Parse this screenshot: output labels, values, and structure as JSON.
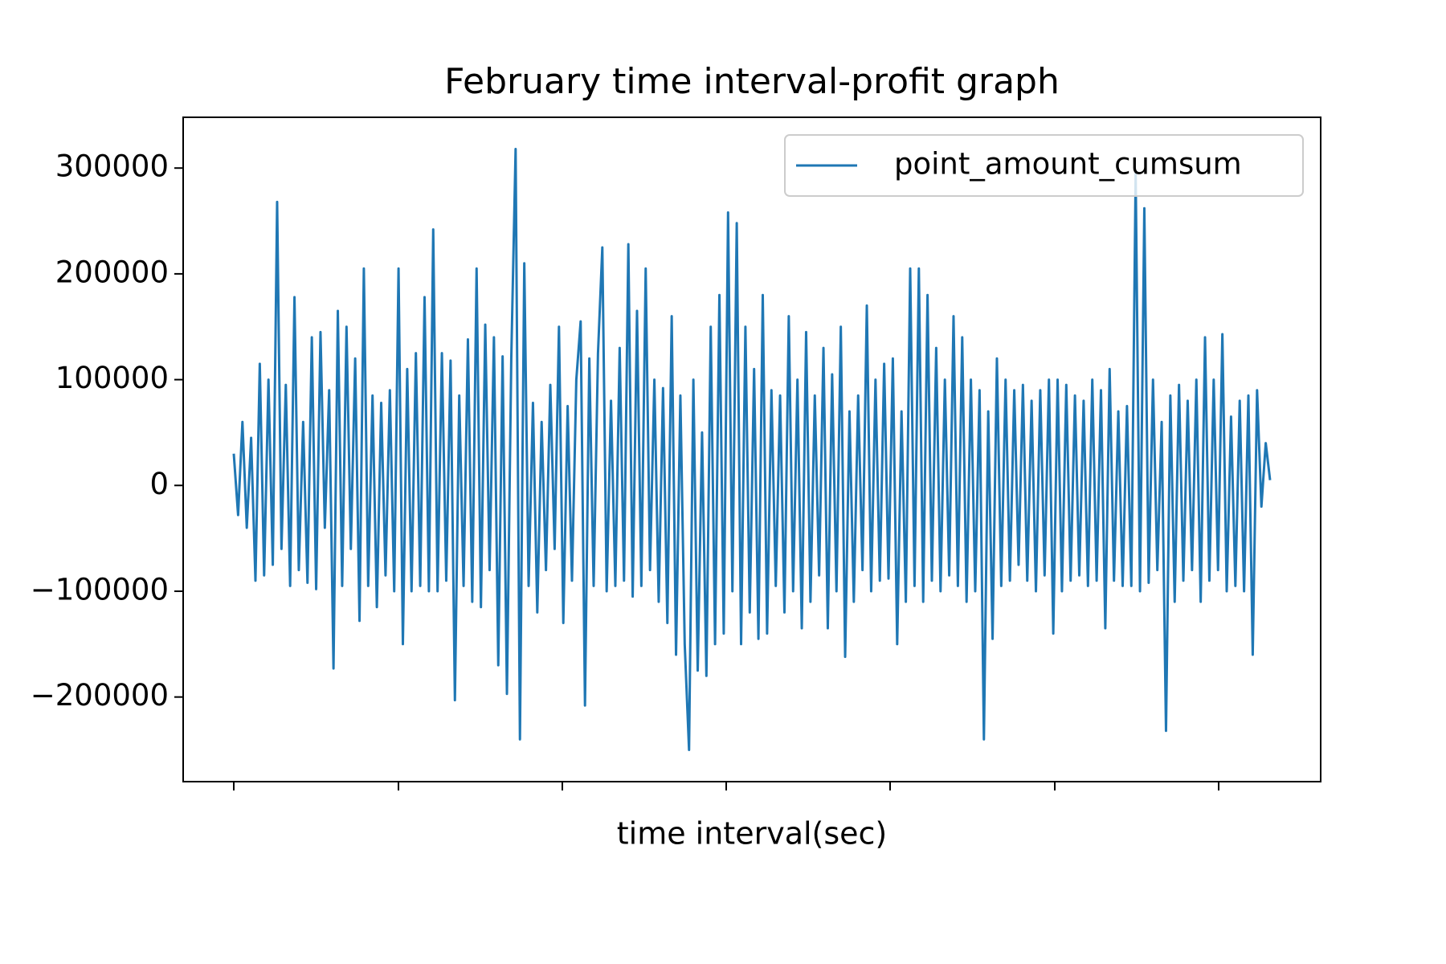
{
  "chart_data": {
    "type": "line",
    "title": "February time interval-profit graph",
    "xlabel": "time interval(sec)",
    "ylim": [
      -280000,
      348000
    ],
    "yticks": [
      {
        "value": -200000,
        "label": "−200000"
      },
      {
        "value": -100000,
        "label": "−100000"
      },
      0,
      100000,
      200000,
      300000
    ],
    "legend": "upper right",
    "series": [
      {
        "name": "point_amount_cumsum",
        "color": "#1f77b4",
        "values": [
          30000,
          -28000,
          60000,
          -40000,
          45000,
          -90000,
          115000,
          -85000,
          100000,
          -75000,
          268000,
          -60000,
          95000,
          -95000,
          178000,
          -80000,
          60000,
          -92000,
          140000,
          -98000,
          145000,
          -40000,
          90000,
          -173000,
          165000,
          -95000,
          150000,
          -60000,
          120000,
          -128000,
          205000,
          -95000,
          85000,
          -115000,
          78000,
          -85000,
          90000,
          -100000,
          205000,
          -150000,
          110000,
          -100000,
          125000,
          -95000,
          178000,
          -100000,
          242000,
          -100000,
          125000,
          -90000,
          118000,
          -203000,
          85000,
          -95000,
          138000,
          -110000,
          205000,
          -115000,
          152000,
          -80000,
          140000,
          -170000,
          122000,
          -197000,
          120000,
          318000,
          -240000,
          210000,
          -95000,
          78000,
          -120000,
          60000,
          -80000,
          95000,
          -60000,
          150000,
          -130000,
          75000,
          -90000,
          100000,
          155000,
          -208000,
          120000,
          -95000,
          125000,
          225000,
          -100000,
          80000,
          -95000,
          130000,
          -90000,
          228000,
          -105000,
          165000,
          -95000,
          205000,
          -80000,
          100000,
          -110000,
          92000,
          -130000,
          160000,
          -160000,
          85000,
          -150000,
          -250000,
          100000,
          -175000,
          50000,
          -180000,
          150000,
          -150000,
          180000,
          -140000,
          258000,
          -100000,
          248000,
          -150000,
          150000,
          -120000,
          110000,
          -145000,
          180000,
          -140000,
          90000,
          -95000,
          85000,
          -120000,
          160000,
          -100000,
          100000,
          -135000,
          145000,
          -110000,
          85000,
          -85000,
          130000,
          -135000,
          105000,
          -100000,
          150000,
          -162000,
          70000,
          -110000,
          85000,
          -80000,
          170000,
          -100000,
          100000,
          -90000,
          115000,
          -88000,
          120000,
          -150000,
          70000,
          -110000,
          205000,
          -95000,
          205000,
          -110000,
          180000,
          -90000,
          130000,
          -100000,
          100000,
          -85000,
          160000,
          -95000,
          140000,
          -110000,
          100000,
          -100000,
          90000,
          -240000,
          70000,
          -145000,
          120000,
          -95000,
          100000,
          -90000,
          90000,
          -75000,
          95000,
          -90000,
          80000,
          -100000,
          90000,
          -85000,
          100000,
          -140000,
          100000,
          -100000,
          95000,
          -90000,
          85000,
          -85000,
          80000,
          -95000,
          100000,
          -90000,
          90000,
          -135000,
          110000,
          -90000,
          70000,
          -95000,
          75000,
          -95000,
          295000,
          -100000,
          262000,
          -92000,
          100000,
          -80000,
          60000,
          -232000,
          85000,
          -110000,
          95000,
          -90000,
          80000,
          -80000,
          100000,
          -110000,
          140000,
          -90000,
          100000,
          -80000,
          143000,
          -100000,
          65000,
          -95000,
          80000,
          -100000,
          85000,
          -160000,
          90000,
          -20000,
          40000,
          5000
        ]
      }
    ]
  }
}
